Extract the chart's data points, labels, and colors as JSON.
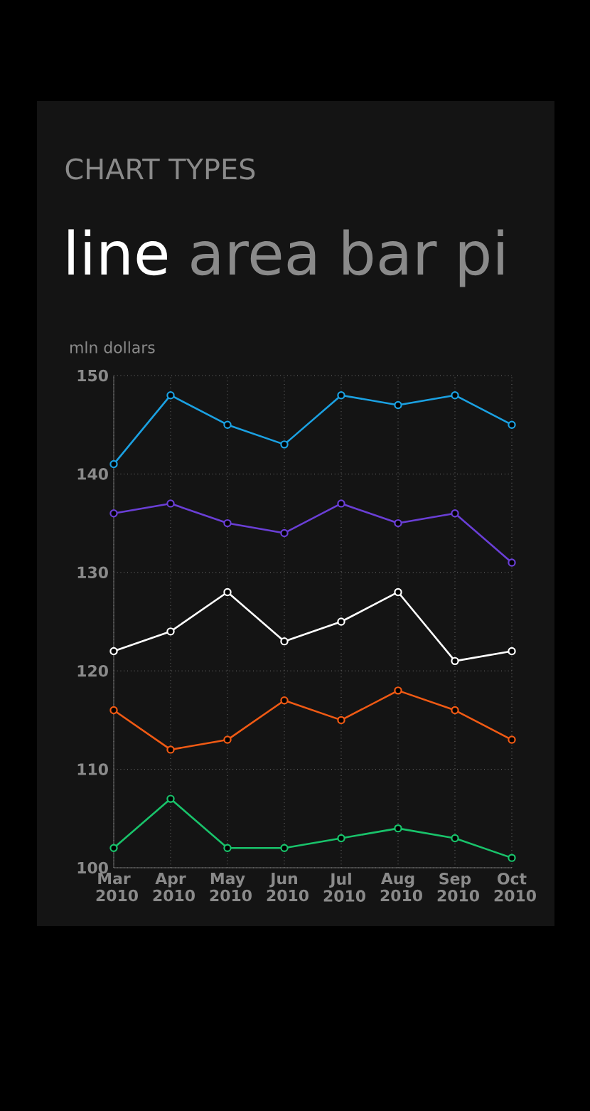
{
  "chart_data": {
    "type": "line",
    "title": "CHART TYPES",
    "subtitle": "line",
    "annotations": [
      "area",
      "bar",
      "pi"
    ],
    "ylabel": "mln dollars",
    "categories": [
      "Mar 2010",
      "Apr 2010",
      "May 2010",
      "Jun 2010",
      "Jul 2010",
      "Aug 2010",
      "Sep 2010",
      "Oct 2010"
    ],
    "series": [
      {
        "color": "#1ba1e2",
        "values": [
          141,
          148,
          145,
          143,
          148,
          147,
          148,
          145
        ]
      },
      {
        "color": "#6a3fd6",
        "values": [
          136,
          137,
          135,
          134,
          137,
          135,
          136,
          131
        ]
      },
      {
        "color": "#ffffff",
        "values": [
          122,
          124,
          128,
          123,
          125,
          128,
          121,
          122
        ]
      },
      {
        "color": "#f05a14",
        "values": [
          116,
          112,
          113,
          117,
          115,
          118,
          116,
          113
        ]
      },
      {
        "color": "#19c36b",
        "values": [
          102,
          107,
          102,
          102,
          103,
          104,
          103,
          101
        ]
      }
    ],
    "ylim": [
      100,
      150
    ],
    "yticks": [
      100,
      110,
      120,
      130,
      140,
      150
    ],
    "grid": true,
    "marker": "circle",
    "line_style": "solid"
  }
}
